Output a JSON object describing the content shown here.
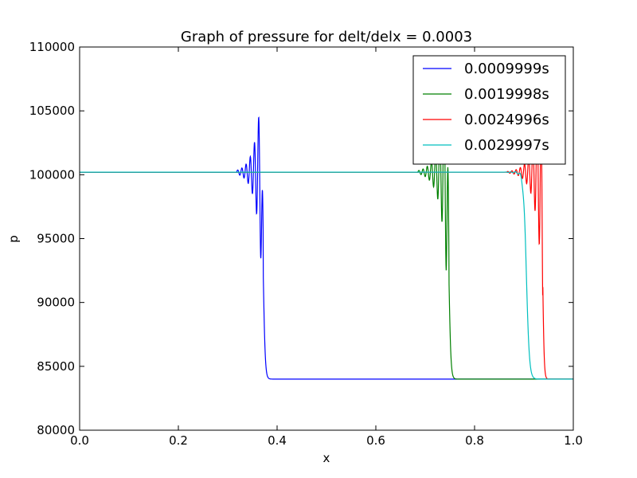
{
  "chart_data": {
    "type": "line",
    "title": "Graph of pressure for delt/delx = 0.0003",
    "xlabel": "x",
    "ylabel": "p",
    "xlim": [
      0.0,
      1.0
    ],
    "ylim": [
      80000,
      110000
    ],
    "x_ticks": [
      "0.0",
      "0.2",
      "0.4",
      "0.6",
      "0.8",
      "1.0"
    ],
    "y_ticks": [
      "80000",
      "85000",
      "90000",
      "95000",
      "100000",
      "105000",
      "110000"
    ],
    "grid": false,
    "legend_position": "top-right",
    "p_high": 100200,
    "p_low": 84000,
    "series": [
      {
        "name": "0.0009999s",
        "color": "#0000ff",
        "front_x": 0.372,
        "front_width": 0.008,
        "osc_start": 0.318,
        "osc_period": 0.0085,
        "osc_amp": 5000,
        "osc_decay": 0.013
      },
      {
        "name": "0.0019998s",
        "color": "#008000",
        "front_x": 0.748,
        "front_width": 0.008,
        "osc_start": 0.685,
        "osc_period": 0.0085,
        "osc_amp": 6000,
        "osc_decay": 0.014
      },
      {
        "name": "0.0024996s",
        "color": "#ff0000",
        "front_x": 0.938,
        "front_width": 0.006,
        "osc_start": 0.865,
        "osc_period": 0.0085,
        "osc_amp": 6000,
        "osc_decay": 0.014
      },
      {
        "name": "0.0029997s",
        "color": "#00bfbf",
        "front_x": 0.905,
        "front_width": 0.012,
        "osc_start": 0.86,
        "osc_period": 0.01,
        "osc_amp": 150,
        "osc_decay": 0.012
      }
    ]
  }
}
